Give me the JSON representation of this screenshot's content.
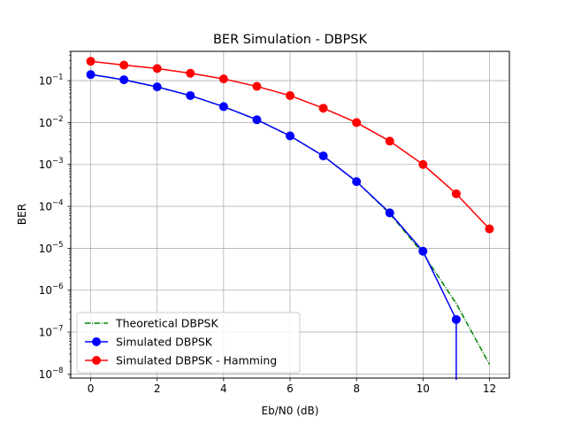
{
  "chart_data": {
    "type": "line",
    "title": "BER Simulation - DBPSK",
    "xlabel": "Eb/N0 (dB)",
    "ylabel": "BER",
    "yscale": "log",
    "xlim": [
      -0.6,
      12.6
    ],
    "ylim": [
      8e-09,
      0.5
    ],
    "grid": true,
    "legend_position": "lower-left",
    "xticks": [
      0,
      2,
      4,
      6,
      8,
      10,
      12
    ],
    "yticks": [
      {
        "exp": -8,
        "label_base": "10",
        "label_exp": "−8"
      },
      {
        "exp": -7,
        "label_base": "10",
        "label_exp": "−7"
      },
      {
        "exp": -6,
        "label_base": "10",
        "label_exp": "−6"
      },
      {
        "exp": -5,
        "label_base": "10",
        "label_exp": "−5"
      },
      {
        "exp": -4,
        "label_base": "10",
        "label_exp": "−4"
      },
      {
        "exp": -3,
        "label_base": "10",
        "label_exp": "−3"
      },
      {
        "exp": -2,
        "label_base": "10",
        "label_exp": "−2"
      },
      {
        "exp": -1,
        "label_base": "10",
        "label_exp": "−1"
      }
    ],
    "series": [
      {
        "name": "Theoretical DBPSK",
        "color": "#008000",
        "style": "dashdot",
        "marker": "none",
        "x": [
          0,
          1,
          2,
          3,
          4,
          5,
          6,
          7,
          8,
          9,
          10,
          11,
          12
        ],
        "y": [
          0.14,
          0.105,
          0.071,
          0.044,
          0.024,
          0.0117,
          0.0048,
          0.0016,
          0.00039,
          6.7e-05,
          7.5e-06,
          4.8e-07,
          1.7e-08
        ]
      },
      {
        "name": "Simulated DBPSK",
        "color": "#0000ff",
        "style": "solid",
        "marker": "circle",
        "x": [
          0,
          1,
          2,
          3,
          4,
          5,
          6,
          7,
          8,
          9,
          10,
          11
        ],
        "y": [
          0.14,
          0.105,
          0.071,
          0.044,
          0.024,
          0.0117,
          0.0048,
          0.0016,
          0.00039,
          7e-05,
          8.5e-06,
          2e-07
        ],
        "drop_to_zero_after": 11
      },
      {
        "name": "Simulated DBPSK - Hamming",
        "color": "#ff0000",
        "style": "solid",
        "marker": "circle",
        "x": [
          0,
          1,
          2,
          3,
          4,
          5,
          6,
          7,
          8,
          9,
          10,
          11,
          12
        ],
        "y": [
          0.29,
          0.235,
          0.195,
          0.15,
          0.11,
          0.073,
          0.044,
          0.022,
          0.01,
          0.0036,
          0.001,
          0.0002,
          2.9e-05
        ]
      }
    ]
  }
}
